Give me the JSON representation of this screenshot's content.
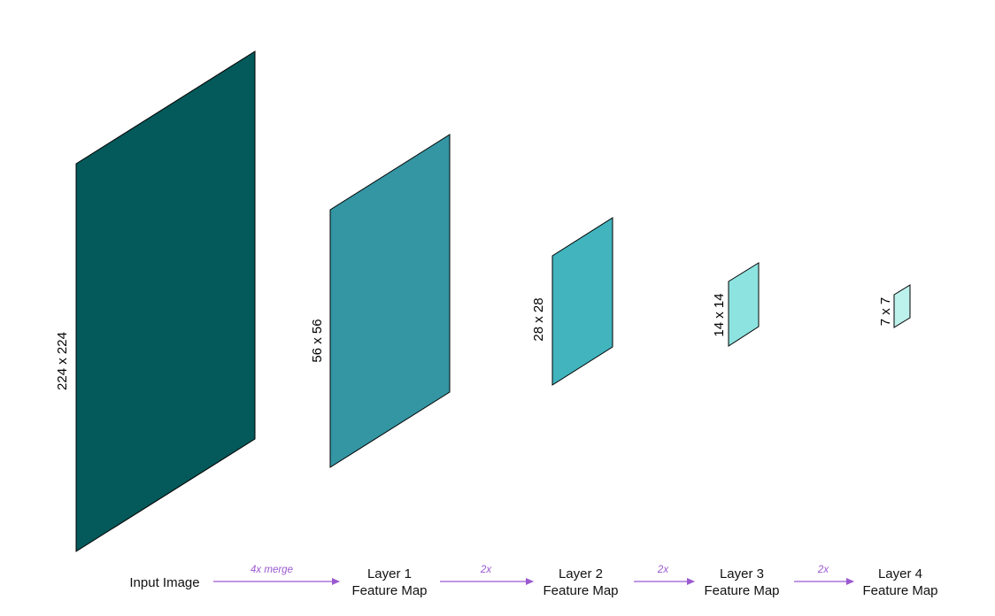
{
  "colors": {
    "input_plane": "#04595A",
    "layer1_plane": "#3495A3",
    "layer2_plane": "#41B4BE",
    "layer3_plane": "#8DE3E0",
    "layer4_plane": "#BDF1EC",
    "arrow": "#9B59D0"
  },
  "planes": {
    "input": {
      "dim_label": "224 x 224"
    },
    "layer1": {
      "dim_label": "56 x 56"
    },
    "layer2": {
      "dim_label": "28 x 28"
    },
    "layer3": {
      "dim_label": "14 x 14"
    },
    "layer4": {
      "dim_label": "7 x 7"
    }
  },
  "stages": {
    "input": {
      "label": "Input Image"
    },
    "layer1": {
      "line1": "Layer 1",
      "line2": "Feature Map"
    },
    "layer2": {
      "line1": "Layer 2",
      "line2": "Feature Map"
    },
    "layer3": {
      "line1": "Layer 3",
      "line2": "Feature Map"
    },
    "layer4": {
      "line1": "Layer 4",
      "line2": "Feature Map"
    }
  },
  "arrows": {
    "a1": {
      "label": "4x merge"
    },
    "a2": {
      "label": "2x"
    },
    "a3": {
      "label": "2x"
    },
    "a4": {
      "label": "2x"
    }
  }
}
